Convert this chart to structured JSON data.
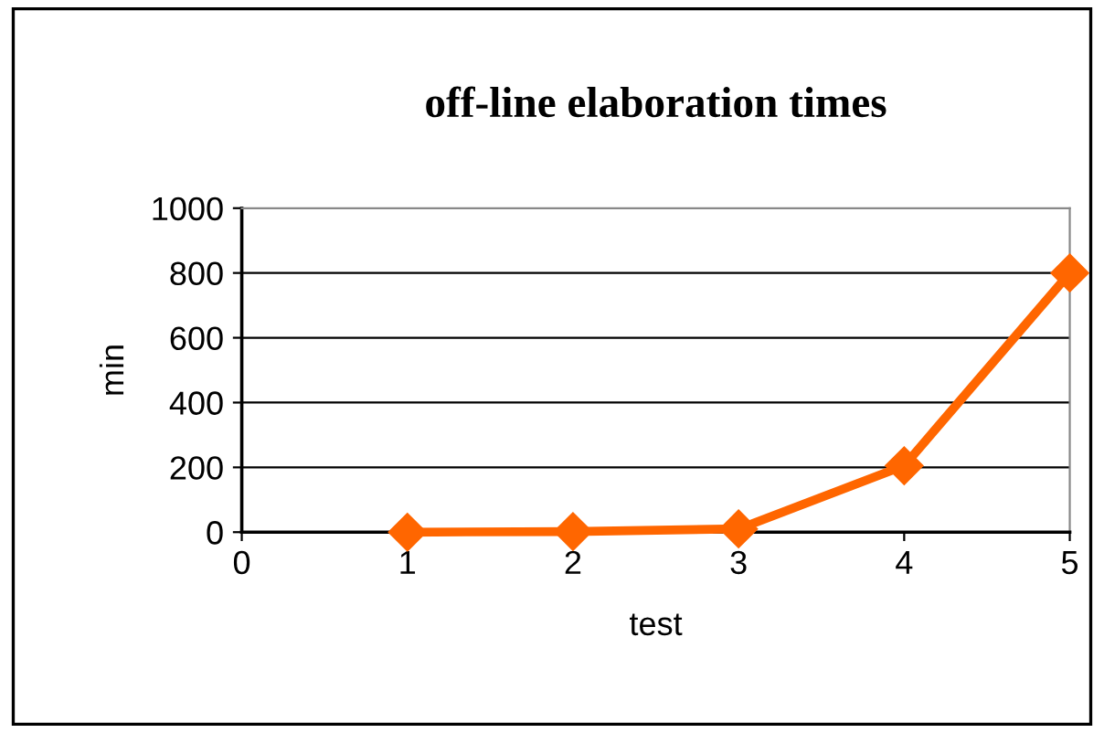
{
  "chart_data": {
    "type": "line",
    "title": "off-line elaboration times",
    "xlabel": "test",
    "ylabel": "min",
    "x": [
      1,
      2,
      3,
      4,
      5
    ],
    "series": [
      {
        "color": "#ff6600",
        "values": [
          0,
          2,
          10,
          205,
          800
        ]
      }
    ],
    "xlim": [
      0,
      5
    ],
    "xticks": [
      0,
      1,
      2,
      3,
      4,
      5
    ],
    "ylim": [
      0,
      1000
    ],
    "yticks": [
      0,
      200,
      400,
      600,
      800,
      1000
    ],
    "grid": "y",
    "marker": "diamond",
    "line_style": "solid"
  }
}
